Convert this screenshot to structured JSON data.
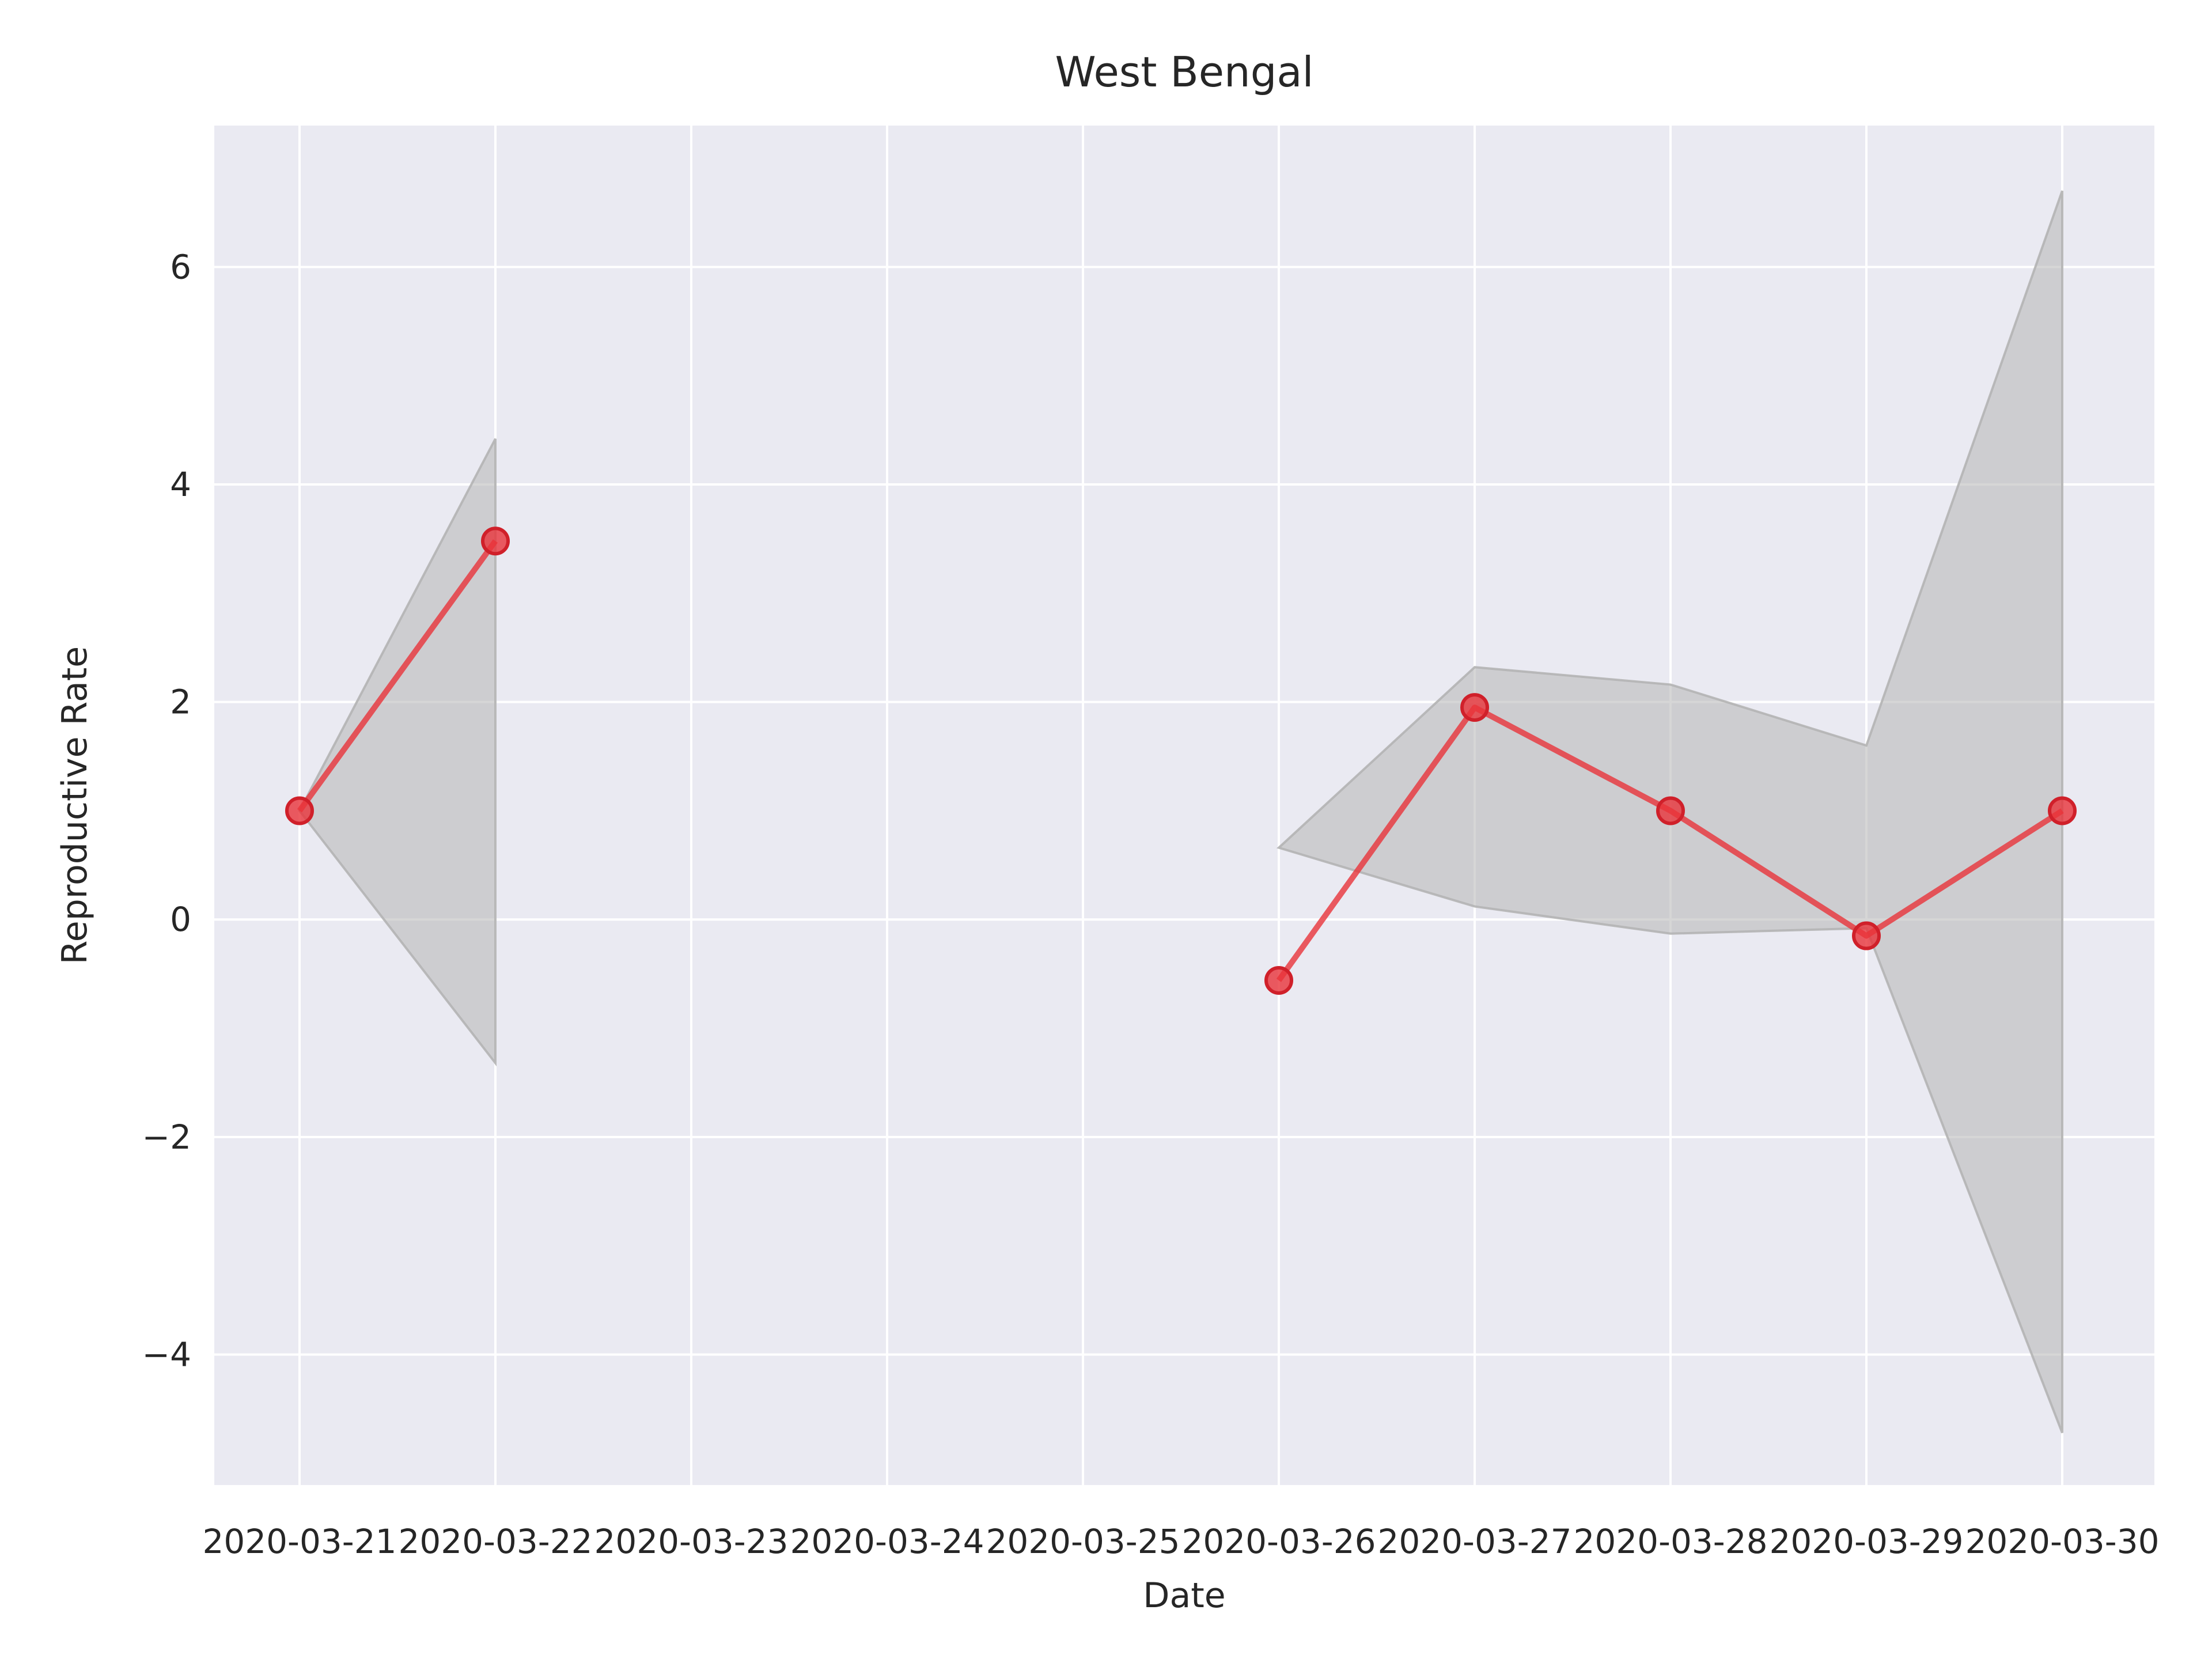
{
  "chart_data": {
    "type": "line",
    "title": "West Bengal",
    "xlabel": "Date",
    "ylabel": "Reproductive Rate",
    "x_ticks": [
      "2020-03-21",
      "2020-03-22",
      "2020-03-23",
      "2020-03-24",
      "2020-03-25",
      "2020-03-26",
      "2020-03-27",
      "2020-03-28",
      "2020-03-29",
      "2020-03-30"
    ],
    "y_ticks": [
      -4,
      -2,
      0,
      2,
      4,
      6
    ],
    "y_tick_labels": [
      "−4",
      "−2",
      "0",
      "2",
      "4",
      "6"
    ],
    "ylim": [
      -5.2,
      7.3
    ],
    "grid": true,
    "series": [
      {
        "points": [
          {
            "x": "2020-03-21",
            "y": 1.0
          },
          {
            "x": "2020-03-22",
            "y": 3.48
          },
          {
            "x": "2020-03-23",
            "y": null
          },
          {
            "x": "2020-03-24",
            "y": null
          },
          {
            "x": "2020-03-25",
            "y": null
          },
          {
            "x": "2020-03-26",
            "y": -0.56
          },
          {
            "x": "2020-03-27",
            "y": 1.95
          },
          {
            "x": "2020-03-28",
            "y": 1.0
          },
          {
            "x": "2020-03-29",
            "y": -0.15
          },
          {
            "x": "2020-03-30",
            "y": 1.0
          }
        ],
        "color": "#e8333a"
      }
    ],
    "band": {
      "color": "#b4b4b4",
      "points": [
        {
          "x": "2020-03-21",
          "lower": 1.0,
          "upper": 1.0
        },
        {
          "x": "2020-03-22",
          "lower": -1.32,
          "upper": 4.42
        },
        {
          "x": "2020-03-23",
          "lower": null,
          "upper": null
        },
        {
          "x": "2020-03-24",
          "lower": null,
          "upper": null
        },
        {
          "x": "2020-03-25",
          "lower": null,
          "upper": null
        },
        {
          "x": "2020-03-26",
          "lower": 0.66,
          "upper": 0.66
        },
        {
          "x": "2020-03-27",
          "lower": 0.12,
          "upper": 2.32
        },
        {
          "x": "2020-03-28",
          "lower": -0.13,
          "upper": 2.16
        },
        {
          "x": "2020-03-29",
          "lower": -0.08,
          "upper": 1.6
        },
        {
          "x": "2020-03-30",
          "lower": -4.72,
          "upper": 6.7
        }
      ]
    }
  }
}
